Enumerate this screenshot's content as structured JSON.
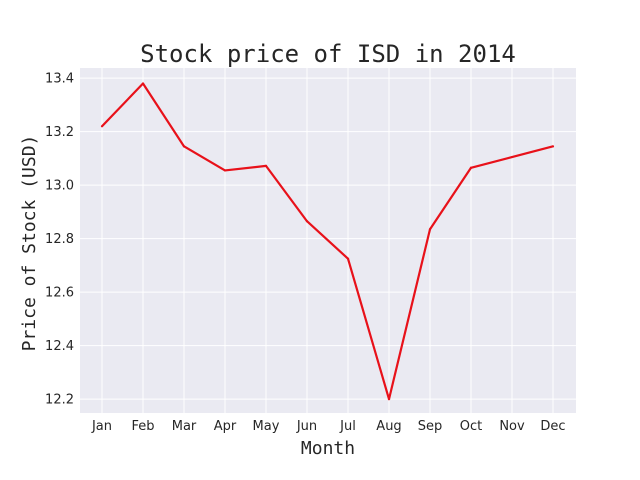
{
  "chart_data": {
    "type": "line",
    "title": "Stock price of ISD in 2014",
    "xlabel": "Month",
    "ylabel": "Price of Stock (USD)",
    "categories": [
      "Jan",
      "Feb",
      "Mar",
      "Apr",
      "May",
      "Jun",
      "Jul",
      "Aug",
      "Sep",
      "Oct",
      "Nov",
      "Dec"
    ],
    "series": [
      {
        "values": [
          13.22,
          13.38,
          13.145,
          13.055,
          13.072,
          12.865,
          12.725,
          12.2,
          12.835,
          13.065,
          13.105,
          13.145
        ],
        "color": "#e8111a"
      }
    ],
    "ylim": [
      12.148,
      13.438
    ],
    "yticks": [
      12.2,
      12.4,
      12.6,
      12.8,
      13.0,
      13.2,
      13.4
    ],
    "ytick_labels": [
      "12.2",
      "12.4",
      "12.6",
      "12.8",
      "13.0",
      "13.2",
      "13.4"
    ],
    "grid": true,
    "style": {
      "plot_background": "#eaeaf2",
      "grid_color": "#ffffff",
      "text_color": "#262626"
    }
  }
}
